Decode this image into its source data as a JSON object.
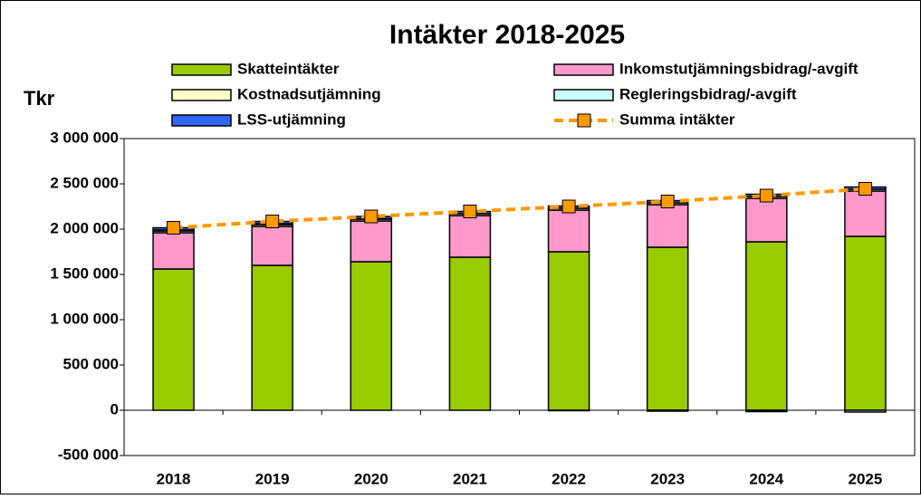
{
  "chart_data": {
    "type": "bar",
    "stacked": true,
    "title": "Intäkter 2018-2025",
    "y_label": "Tkr",
    "categories": [
      "2018",
      "2019",
      "2020",
      "2021",
      "2022",
      "2023",
      "2024",
      "2025"
    ],
    "series": [
      {
        "name": "Skatteintäkter",
        "color": "#99cc00",
        "values": [
          1560000,
          1600000,
          1640000,
          1690000,
          1750000,
          1800000,
          1860000,
          1920000
        ]
      },
      {
        "name": "Inkomstutjämningsbidrag/-avgift",
        "color": "#ff99cc",
        "values": [
          400000,
          430000,
          450000,
          460000,
          460000,
          470000,
          480000,
          500000
        ]
      },
      {
        "name": "Kostnadsutjämning",
        "color": "#ffffcc",
        "values": [
          20000,
          20000,
          20000,
          20000,
          20000,
          20000,
          20000,
          20000
        ]
      },
      {
        "name": "Regleringsbidrag/-avgift",
        "color": "#ccffff",
        "values": [
          10000,
          10000,
          5000,
          0,
          -5000,
          -10000,
          -15000,
          -20000
        ]
      },
      {
        "name": "LSS-utjämning",
        "color": "#3366ff",
        "values": [
          25000,
          25000,
          25000,
          25000,
          25000,
          25000,
          25000,
          25000
        ]
      },
      {
        "name": "Summa intäkter",
        "type": "line",
        "color": "#ff9900",
        "values": [
          2015000,
          2085000,
          2140000,
          2195000,
          2250000,
          2305000,
          2370000,
          2445000
        ]
      }
    ],
    "ylim": [
      -500000,
      3000000
    ],
    "yticks": [
      {
        "value": -500000,
        "label": "-500 000"
      },
      0,
      {
        "value": 500000,
        "label": "500 000"
      },
      {
        "value": 1000000,
        "label": "1 000 000"
      },
      {
        "value": 1500000,
        "label": "1 500 000"
      },
      {
        "value": 2000000,
        "label": "2 000 000"
      },
      {
        "value": 2500000,
        "label": "2 500 000"
      },
      {
        "value": 3000000,
        "label": "3 000 000"
      }
    ],
    "grid": false
  }
}
